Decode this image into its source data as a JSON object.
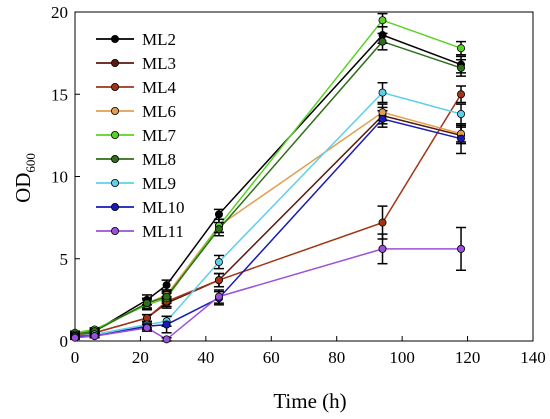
{
  "chart_data": {
    "type": "line",
    "xlabel": "Time (h)",
    "ylabel": "OD",
    "ylabel_subscript": "600",
    "xlim": [
      0,
      140
    ],
    "ylim": [
      0,
      20
    ],
    "xticks": [
      0,
      20,
      40,
      60,
      80,
      100,
      120,
      140
    ],
    "yticks": [
      0,
      5,
      10,
      15,
      20
    ],
    "grid": false,
    "legend_position": "top-left",
    "x": [
      0,
      6,
      22,
      28,
      44,
      94,
      118
    ],
    "series": [
      {
        "name": "ML2",
        "color": "#000000",
        "values": [
          0.4,
          0.6,
          2.5,
          3.4,
          7.7,
          18.6,
          16.8
        ],
        "errors": [
          0.1,
          0.1,
          0.3,
          0.3,
          0.3,
          0.5,
          0.5
        ]
      },
      {
        "name": "ML3",
        "color": "#5a1a10",
        "values": [
          0.3,
          0.5,
          1.4,
          2.3,
          3.7,
          13.7,
          12.5
        ],
        "errors": [
          0.1,
          0.1,
          0.2,
          0.3,
          0.4,
          0.5,
          0.5
        ]
      },
      {
        "name": "ML4",
        "color": "#a03515",
        "values": [
          0.3,
          0.5,
          1.4,
          2.4,
          3.7,
          7.2,
          15.0
        ],
        "errors": [
          0.1,
          0.1,
          0.2,
          0.3,
          0.4,
          1.0,
          0.5
        ]
      },
      {
        "name": "ML6",
        "color": "#e0a050",
        "values": [
          0.4,
          0.6,
          2.3,
          2.8,
          7.0,
          13.9,
          12.6
        ],
        "errors": [
          0.1,
          0.1,
          0.3,
          0.3,
          0.4,
          0.5,
          0.5
        ]
      },
      {
        "name": "ML7",
        "color": "#5ad225",
        "values": [
          0.5,
          0.7,
          2.2,
          2.6,
          7.0,
          19.5,
          17.8
        ],
        "errors": [
          0.1,
          0.1,
          0.3,
          0.3,
          0.4,
          0.4,
          0.4
        ]
      },
      {
        "name": "ML8",
        "color": "#2f6e1a",
        "values": [
          0.4,
          0.6,
          2.3,
          2.7,
          6.8,
          18.2,
          16.6
        ],
        "errors": [
          0.1,
          0.1,
          0.3,
          0.3,
          0.4,
          0.5,
          0.5
        ]
      },
      {
        "name": "ML9",
        "color": "#5fd0e8",
        "values": [
          0.3,
          0.4,
          1.0,
          1.2,
          4.8,
          15.1,
          13.8
        ],
        "errors": [
          0.1,
          0.1,
          0.2,
          0.3,
          0.4,
          0.6,
          0.6
        ]
      },
      {
        "name": "ML10",
        "color": "#1a1ab4",
        "values": [
          0.3,
          0.3,
          0.9,
          1.0,
          2.6,
          13.5,
          12.3
        ],
        "errors": [
          0.1,
          0.1,
          0.2,
          0.5,
          0.4,
          0.5,
          0.9
        ]
      },
      {
        "name": "ML11",
        "color": "#9a50d8",
        "values": [
          0.2,
          0.3,
          0.8,
          0.1,
          2.7,
          5.6,
          5.6
        ],
        "errors": [
          0.1,
          0.1,
          0.2,
          0.1,
          0.4,
          0.9,
          1.3
        ]
      }
    ]
  }
}
